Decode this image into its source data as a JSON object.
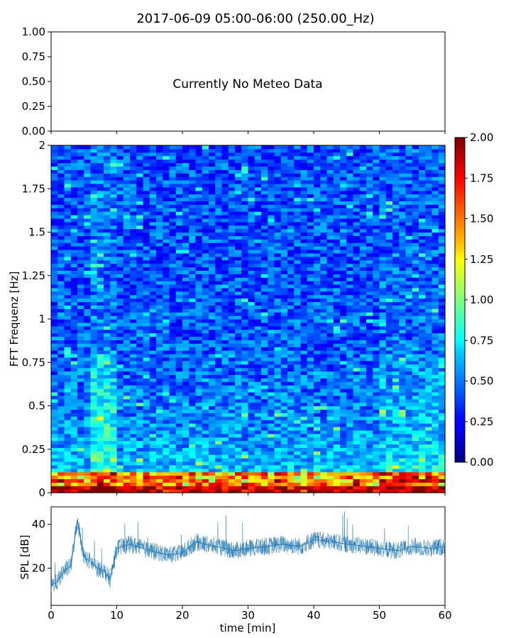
{
  "title": "2017-06-09 05:00-06:00 (250.00_Hz)",
  "meteo_panel": {
    "message": "Currently No Meteo Data",
    "yticks": [
      "0.00",
      "0.25",
      "0.50",
      "0.75",
      "1.00"
    ],
    "ylim": [
      0,
      1
    ]
  },
  "chart_data": [
    {
      "type": "heatmap",
      "ylabel": "FFT Frequenz [Hz]",
      "ylim": [
        0,
        2
      ],
      "xlim": [
        0,
        60
      ],
      "yticks": [
        "0",
        "0.25",
        "0.5",
        "0.75",
        "1",
        "1.25",
        "1.5",
        "1.75",
        "2"
      ],
      "colormap": "jet",
      "colorbar": {
        "range": [
          0,
          2
        ],
        "ticks": [
          "0.00",
          "0.25",
          "0.50",
          "0.75",
          "1.00",
          "1.25",
          "1.50",
          "1.75",
          "2.00"
        ]
      }
    },
    {
      "type": "line",
      "ylabel": "SPL [dB]",
      "xlabel": "time [min]",
      "xlim": [
        0,
        60
      ],
      "ylim": [
        3,
        48
      ],
      "xticks": [
        "0",
        "10",
        "20",
        "30",
        "40",
        "50",
        "60"
      ],
      "yticks": [
        "20",
        "40"
      ],
      "color": "#1f77b4",
      "x": [
        0,
        1,
        2,
        3,
        4,
        5,
        6,
        7,
        8,
        9,
        10,
        12,
        15,
        18,
        20,
        22,
        25,
        28,
        30,
        33,
        35,
        38,
        40,
        43,
        45,
        48,
        50,
        53,
        55,
        58,
        60
      ],
      "y": [
        12,
        14,
        19,
        21,
        42,
        25,
        23,
        20,
        19,
        15,
        29,
        31,
        28,
        26,
        27,
        32,
        30,
        28,
        29,
        30,
        31,
        30,
        33,
        32,
        31,
        30,
        29,
        28,
        30,
        29,
        30
      ]
    }
  ]
}
